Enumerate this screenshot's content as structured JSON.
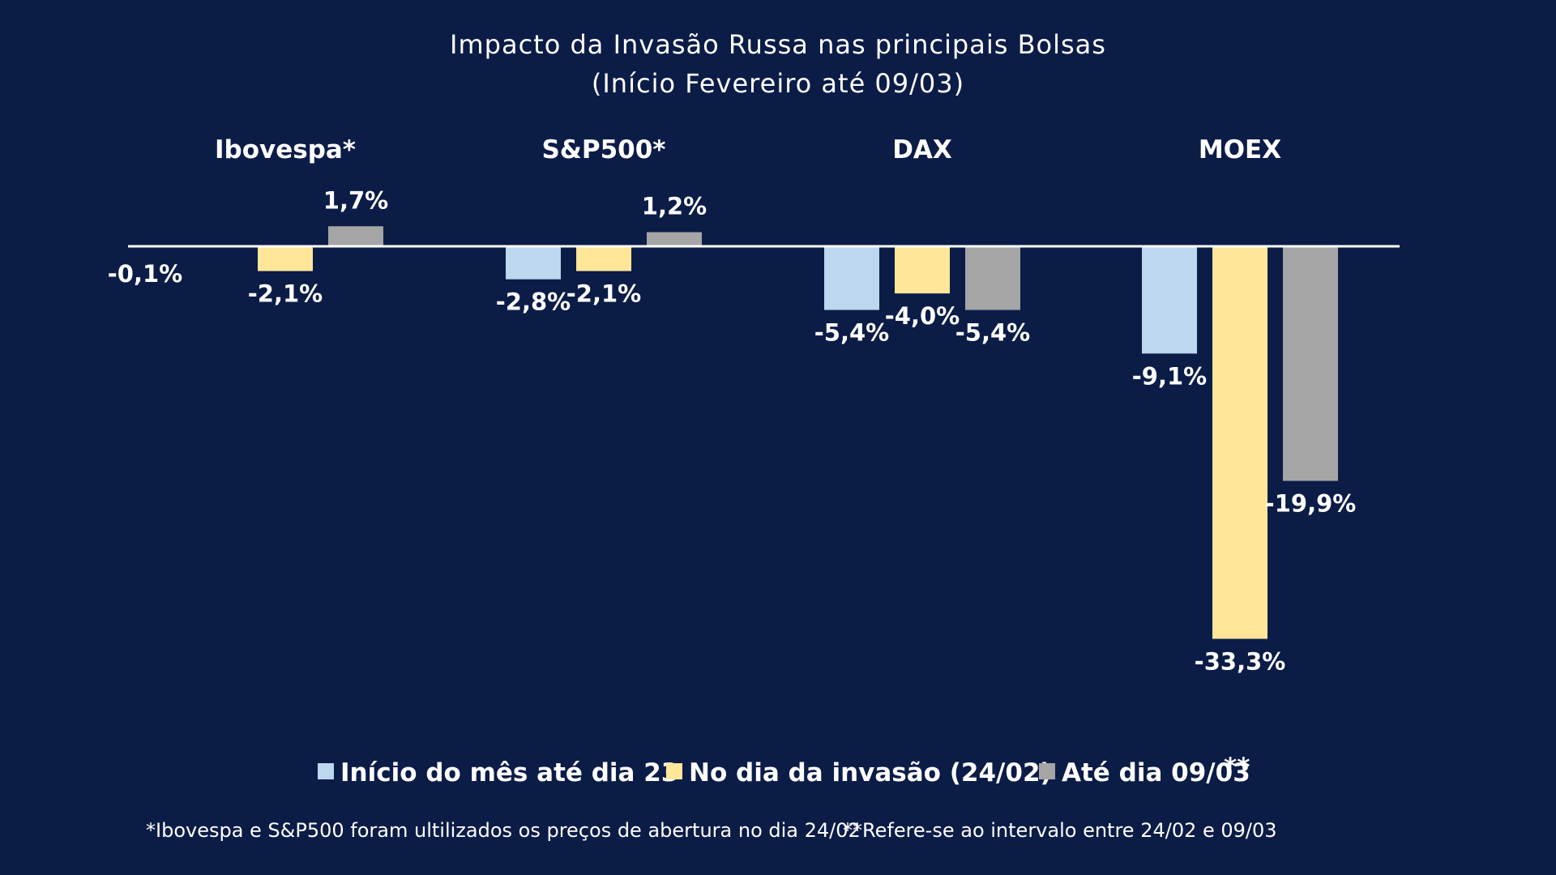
{
  "chart_data": {
    "type": "bar",
    "title": "Impacto da Invasão Russa nas principais Bolsas",
    "subtitle": "(Início Fevereiro até 09/03)",
    "categories": [
      "Ibovespa*",
      "S&P500*",
      "DAX",
      "MOEX"
    ],
    "series": [
      {
        "name": "Início do mês até dia 23",
        "color": "#bdd7ee",
        "values": [
          -0.1,
          -2.8,
          -5.4,
          -9.1
        ],
        "labels": [
          "-0,1%",
          "-2,8%",
          "-5,4%",
          "-9,1%"
        ]
      },
      {
        "name": "No dia da invasão (24/02)",
        "color": "#ffe699",
        "values": [
          -2.1,
          -2.1,
          -4.0,
          -33.3
        ],
        "labels": [
          "-2,1%",
          "-2,1%",
          "-4,0%",
          "-33,3%"
        ]
      },
      {
        "name": "Até dia 09/03",
        "name_suffix": "**",
        "color": "#a5a5a5",
        "values": [
          1.7,
          1.2,
          -5.4,
          -19.9
        ],
        "labels": [
          "1,7%",
          "1,2%",
          "-5,4%",
          "-19,9%"
        ]
      }
    ],
    "ylim": [
      -36,
      3
    ],
    "grid": false,
    "legend": "bottom",
    "notes": [
      "*Ibovespa e S&P500 foram ultilizados os preços de abertura no dia 24/02",
      "**Refere-se ao intervalo entre 24/02 e 09/03"
    ]
  }
}
